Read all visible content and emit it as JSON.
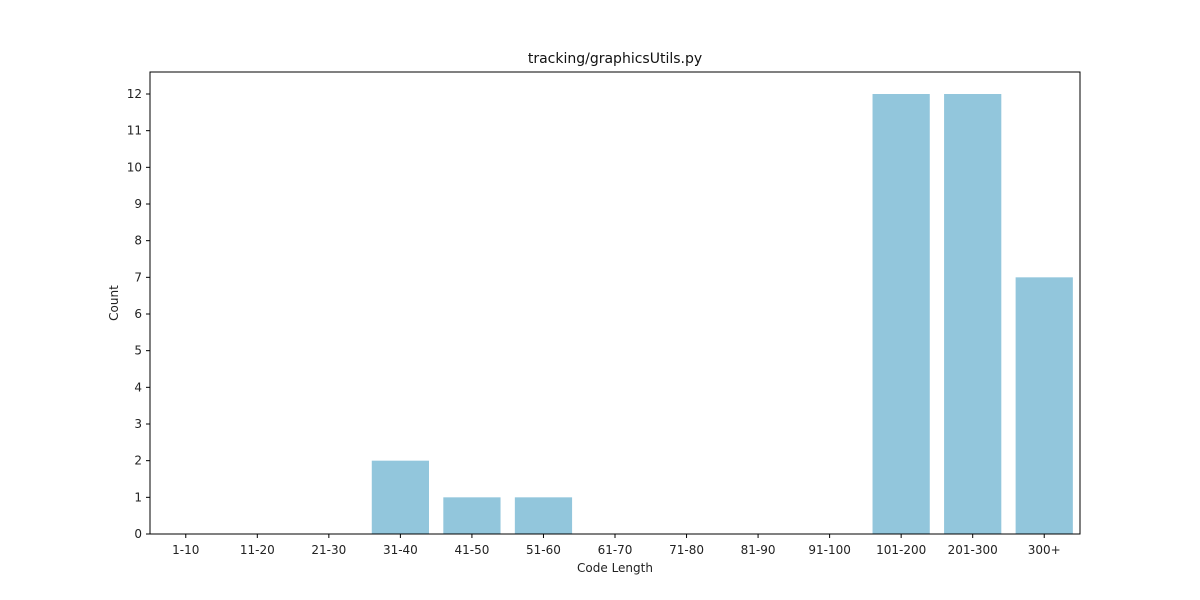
{
  "chart_data": {
    "type": "bar",
    "title": "tracking/graphicsUtils.py",
    "xlabel": "Code Length",
    "ylabel": "Count",
    "categories": [
      "1-10",
      "11-20",
      "21-30",
      "31-40",
      "41-50",
      "51-60",
      "61-70",
      "71-80",
      "81-90",
      "91-100",
      "101-200",
      "201-300",
      "300+"
    ],
    "values": [
      0,
      0,
      0,
      2,
      1,
      1,
      0,
      0,
      0,
      0,
      12,
      12,
      7
    ],
    "ylim": [
      0,
      12.6
    ],
    "yticks": [
      0,
      1,
      2,
      3,
      4,
      5,
      6,
      7,
      8,
      9,
      10,
      11,
      12
    ],
    "bar_color": "#92c6dc",
    "grid": false,
    "legend": "none"
  }
}
